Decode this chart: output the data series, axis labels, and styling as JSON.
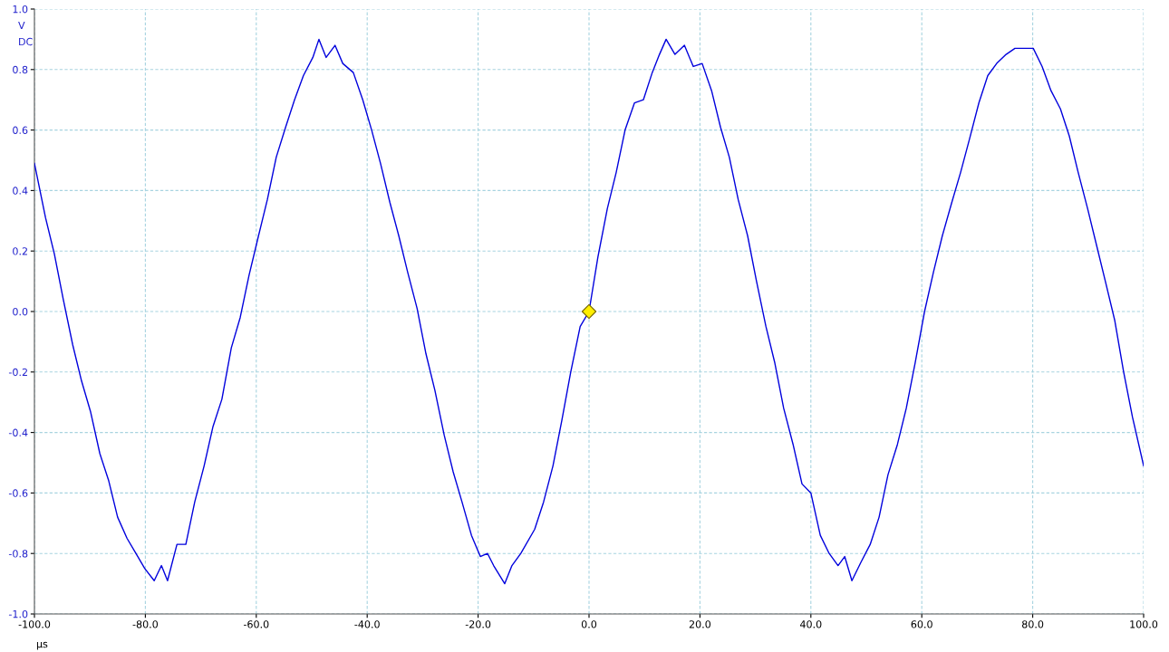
{
  "chart_data": {
    "type": "line",
    "xlabel": "µs",
    "ylabel": "V",
    "annotations": [
      "DC"
    ],
    "xlim": [
      -100,
      100
    ],
    "ylim": [
      -1,
      1
    ],
    "xticks": [
      {
        "value": -100,
        "label": "-100.0"
      },
      {
        "value": -80,
        "label": "-80.0"
      },
      {
        "value": -60,
        "label": "-60.0"
      },
      {
        "value": -40,
        "label": "-40.0"
      },
      {
        "value": -20,
        "label": "-20.0"
      },
      {
        "value": 0,
        "label": "0.0"
      },
      {
        "value": 20,
        "label": "20.0"
      },
      {
        "value": 40,
        "label": "40.0"
      },
      {
        "value": 60,
        "label": "60.0"
      },
      {
        "value": 80,
        "label": "80.0"
      },
      {
        "value": 100,
        "label": "100.0"
      }
    ],
    "yticks": [
      {
        "value": -1,
        "label": "-1.0"
      },
      {
        "value": -0.8,
        "label": "-0.8"
      },
      {
        "value": -0.6,
        "label": "-0.6"
      },
      {
        "value": -0.4,
        "label": "-0.4"
      },
      {
        "value": -0.2,
        "label": "-0.2"
      },
      {
        "value": 0,
        "label": "0.0"
      },
      {
        "value": 0.2,
        "label": "0.2"
      },
      {
        "value": 0.4,
        "label": "0.4"
      },
      {
        "value": 0.6,
        "label": "0.6"
      },
      {
        "value": 0.8,
        "label": "0.8"
      },
      {
        "value": 1,
        "label": "1.0"
      }
    ],
    "grid": true,
    "line_style": "solid",
    "marker": "none",
    "series": [
      {
        "color": "#0000dd",
        "x": [
          -100,
          -98.0,
          -96.4,
          -94.8,
          -93.1,
          -91.5,
          -89.9,
          -88.2,
          -86.6,
          -85.0,
          -83.3,
          -81.7,
          -80.1,
          -78.4,
          -77.1,
          -76.0,
          -74.3,
          -72.7,
          -71.1,
          -69.4,
          -67.8,
          -66.2,
          -64.5,
          -62.9,
          -61.3,
          -59.6,
          -58.0,
          -56.4,
          -54.7,
          -53.1,
          -51.5,
          -49.8,
          -48.7,
          -47.4,
          -45.8,
          -44.4,
          -42.5,
          -40.8,
          -39.2,
          -37.6,
          -35.9,
          -34.3,
          -32.7,
          -31.0,
          -29.4,
          -27.8,
          -26.1,
          -24.5,
          -22.9,
          -21.2,
          -19.6,
          -18.3,
          -17.2,
          -15.2,
          -13.9,
          -12.3,
          -9.8,
          -8.2,
          -6.5,
          -4.9,
          -3.3,
          -1.6,
          0.0,
          1.6,
          3.3,
          4.9,
          6.5,
          8.2,
          9.8,
          11.4,
          12.7,
          13.9,
          15.5,
          17.2,
          18.8,
          20.4,
          22.1,
          23.7,
          25.3,
          26.9,
          28.6,
          30.2,
          31.9,
          33.5,
          35.1,
          36.8,
          38.4,
          40.0,
          41.7,
          43.3,
          44.9,
          46.1,
          47.4,
          49.0,
          50.7,
          52.3,
          53.9,
          55.6,
          57.2,
          58.8,
          60.5,
          62.1,
          63.7,
          65.4,
          67.0,
          68.6,
          70.3,
          71.9,
          73.5,
          75.2,
          76.8,
          78.4,
          80.1,
          81.7,
          83.3,
          85.0,
          86.6,
          88.2,
          89.9,
          91.5,
          93.1,
          94.8,
          96.4,
          98.0,
          100
        ],
        "values": [
          0.49,
          0.31,
          0.19,
          0.04,
          -0.11,
          -0.23,
          -0.33,
          -0.47,
          -0.56,
          -0.68,
          -0.75,
          -0.8,
          -0.85,
          -0.89,
          -0.84,
          -0.89,
          -0.77,
          -0.77,
          -0.63,
          -0.51,
          -0.38,
          -0.29,
          -0.12,
          -0.02,
          0.12,
          0.25,
          0.37,
          0.51,
          0.61,
          0.7,
          0.78,
          0.84,
          0.9,
          0.84,
          0.88,
          0.82,
          0.79,
          0.7,
          0.6,
          0.49,
          0.36,
          0.25,
          0.13,
          0.01,
          -0.14,
          -0.26,
          -0.41,
          -0.53,
          -0.63,
          -0.74,
          -0.81,
          -0.8,
          -0.84,
          -0.9,
          -0.84,
          -0.8,
          -0.72,
          -0.63,
          -0.51,
          -0.36,
          -0.2,
          -0.05,
          0.0,
          0.18,
          0.34,
          0.46,
          0.6,
          0.69,
          0.7,
          0.79,
          0.85,
          0.9,
          0.85,
          0.88,
          0.81,
          0.82,
          0.73,
          0.61,
          0.51,
          0.37,
          0.25,
          0.1,
          -0.05,
          -0.17,
          -0.32,
          -0.44,
          -0.57,
          -0.6,
          -0.74,
          -0.8,
          -0.84,
          -0.81,
          -0.89,
          -0.83,
          -0.77,
          -0.68,
          -0.54,
          -0.44,
          -0.32,
          -0.17,
          0.0,
          0.13,
          0.25,
          0.36,
          0.46,
          0.57,
          0.69,
          0.78,
          0.82,
          0.85,
          0.87,
          0.87,
          0.87,
          0.81,
          0.73,
          0.67,
          0.58,
          0.46,
          0.34,
          0.22,
          0.1,
          -0.03,
          -0.2,
          -0.35,
          -0.51
        ]
      },
      {
        "type": "scatter",
        "color": "#ffee00",
        "marker": "diamond",
        "x": [
          0
        ],
        "values": [
          0
        ]
      }
    ]
  }
}
